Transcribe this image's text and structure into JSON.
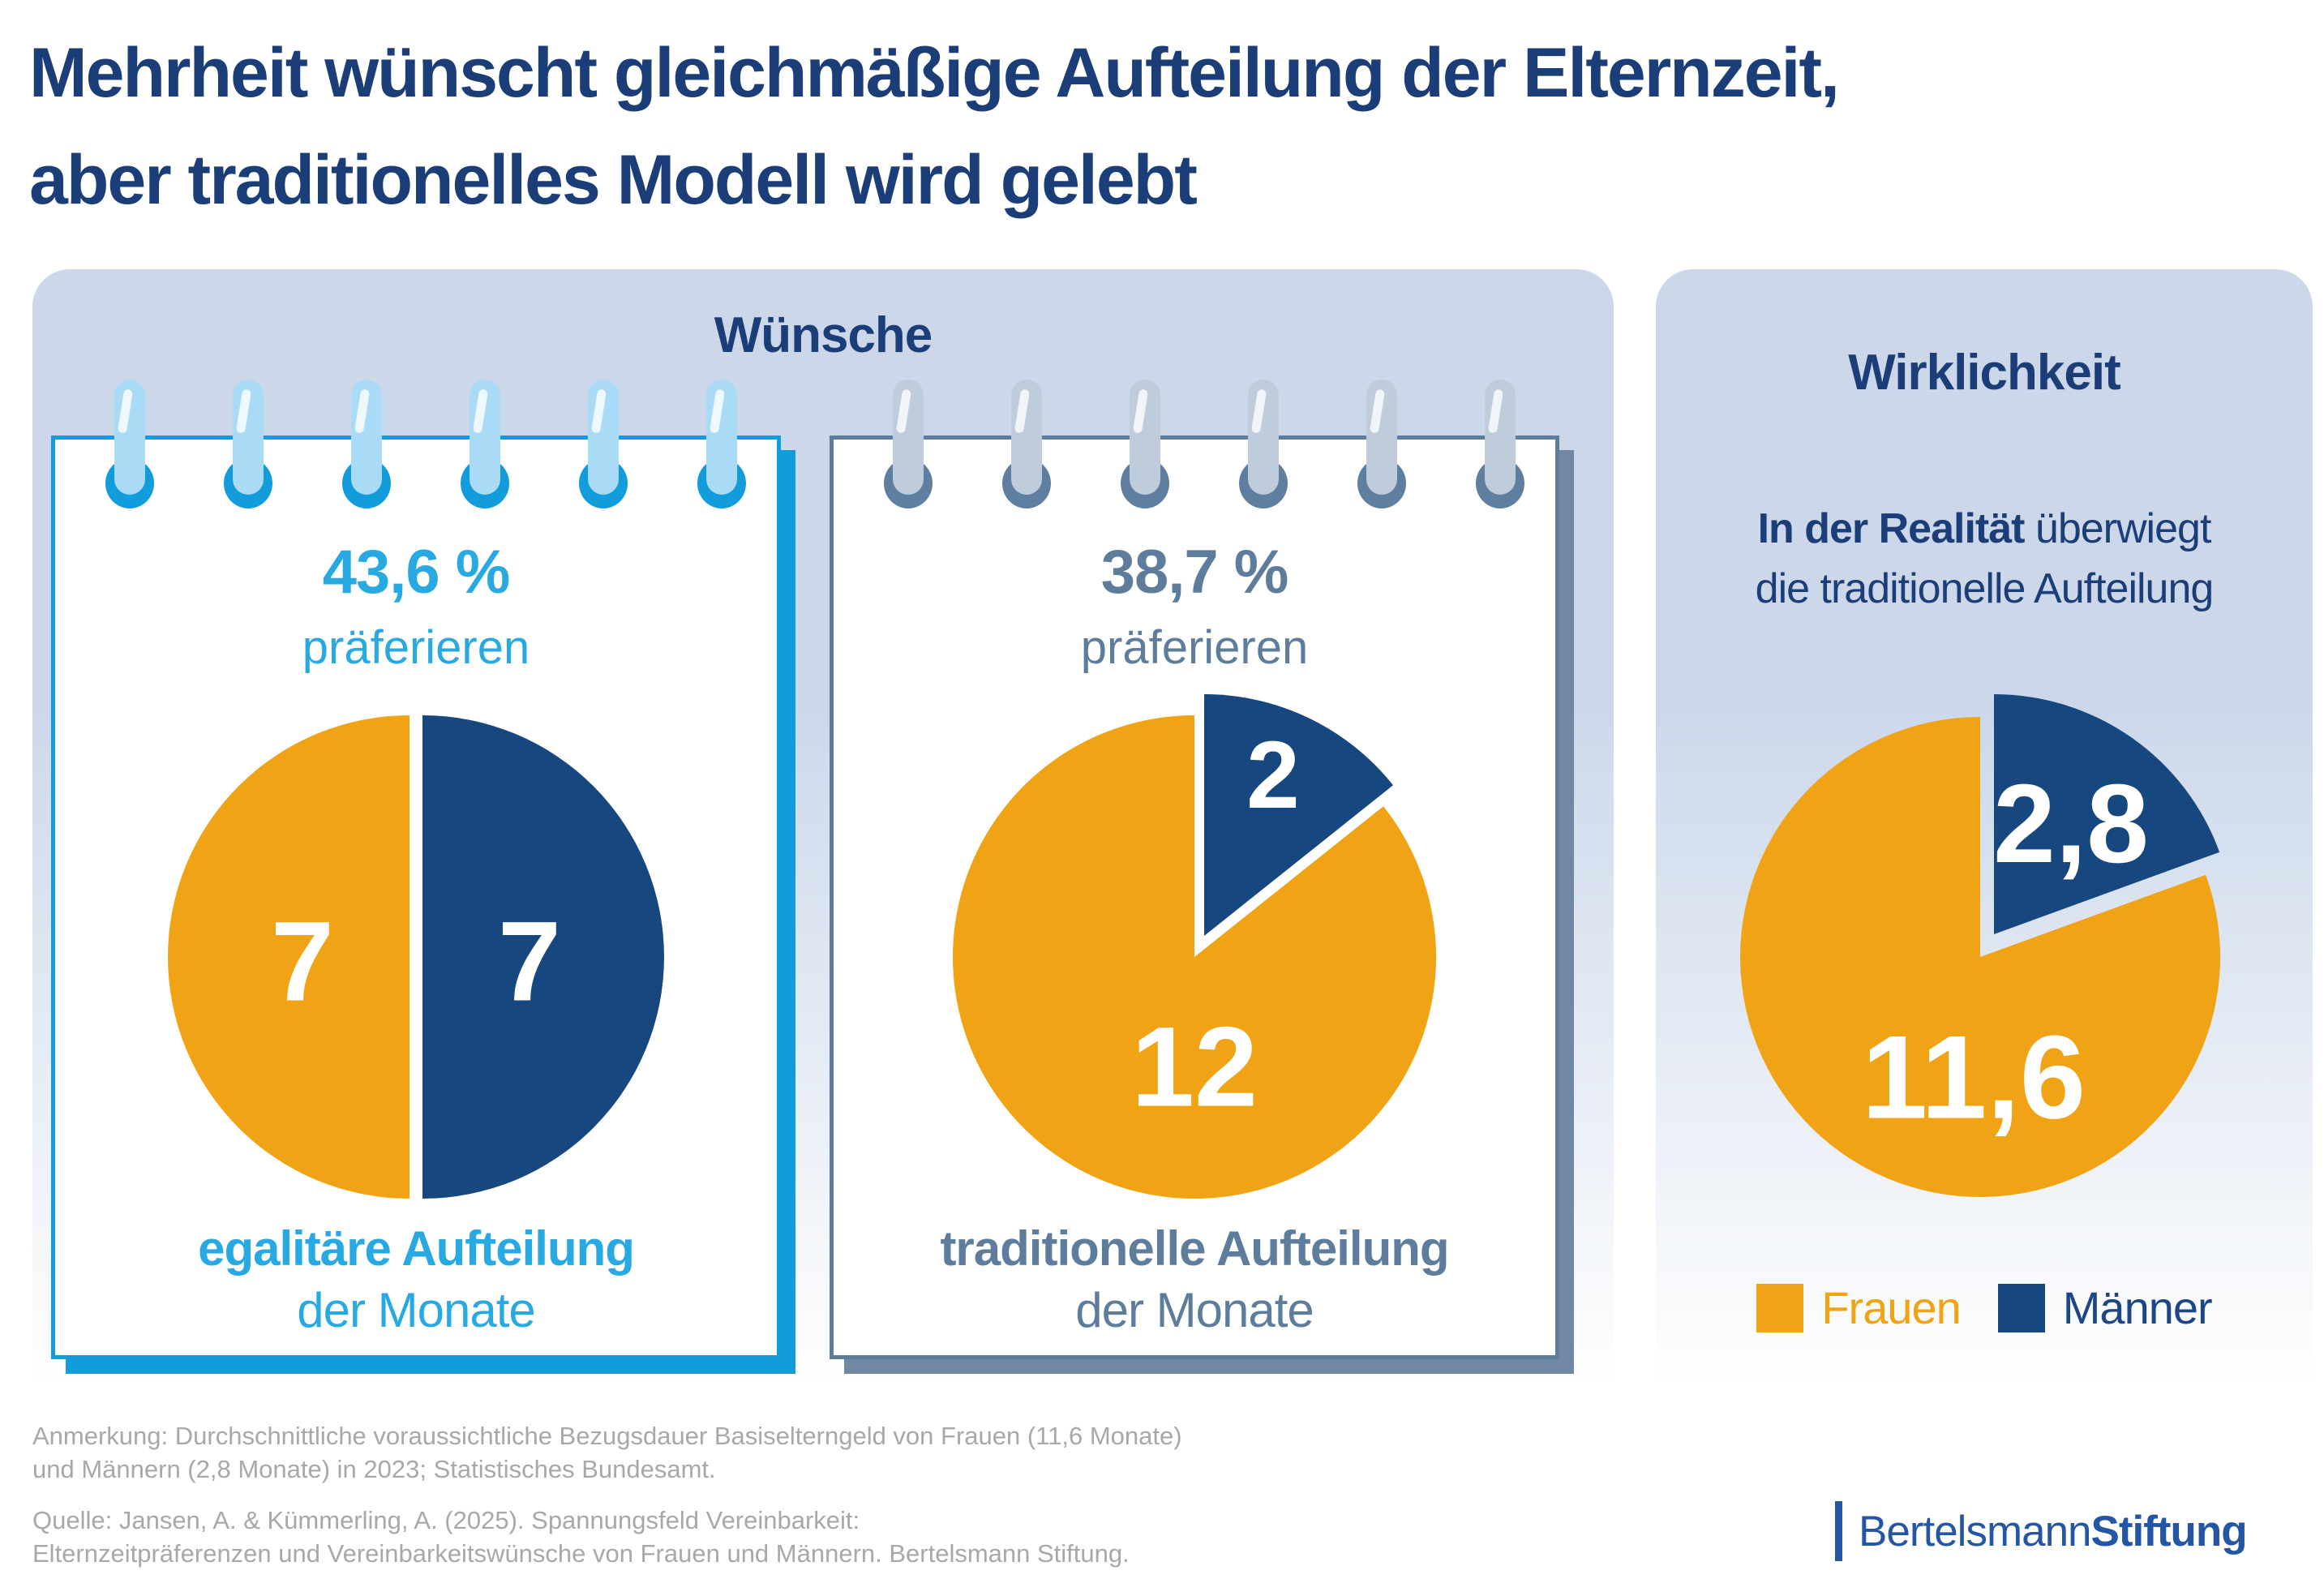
{
  "title": {
    "line1": "Mehrheit wünscht gleichmäßige Aufteilung der Elternzeit,",
    "line2": "aber traditionelles Modell wird gelebt"
  },
  "wuensche_panel": {
    "heading": "Wünsche",
    "cards": [
      {
        "percent": "43,6 %",
        "percent_sub": "präferieren",
        "caption_bold": "egalitäre Aufteilung",
        "caption_regular": "der Monate",
        "accent_color": "#29A9E2"
      },
      {
        "percent": "38,7 %",
        "percent_sub": "präferieren",
        "caption_bold": "traditionelle Aufteilung",
        "caption_regular": "der Monate",
        "accent_color": "#5E7D9D"
      }
    ]
  },
  "wirklichkeit_panel": {
    "heading": "Wirklichkeit",
    "intro_bold": "In der Realität",
    "intro_rest": " überwiegt",
    "intro_line2": "die traditionelle Aufteilung",
    "legend": [
      {
        "label": "Frauen",
        "color": "#F0A314",
        "text_color": "#F0A314"
      },
      {
        "label": "Männer",
        "color": "#17477F",
        "text_color": "#1C4784"
      }
    ]
  },
  "footnotes": {
    "anmerkung_line1": "Anmerkung: Durchschnittliche voraussichtliche Bezugsdauer Basiselterngeld von Frauen (11,6 Monate)",
    "anmerkung_line2": "und Männern (2,8 Monate) in 2023; Statistisches Bundesamt.",
    "quelle_line1": "Quelle: Jansen, A. & Kümmerling, A. (2025). Spannungsfeld Vereinbarkeit:",
    "quelle_line2": "Elternzeitpräferenzen und Vereinbarkeitswünsche von Frauen und Männern. Bertelsmann Stiftung."
  },
  "logo": {
    "name_regular": "Bertelsmann",
    "name_bold": "Stiftung"
  },
  "colors": {
    "title_navy": "#1B3E78",
    "pie_navy": "#17477F",
    "orange": "#F0A314",
    "bright_blue": "#139CDB",
    "light_blue_text": "#29A9E2",
    "slate": "#5E7D9D",
    "panel_bg": "#CCD8EA",
    "footnote_gray": "#A6A8AB",
    "logo_blue": "#2456A3"
  },
  "chart_data": [
    {
      "id": "pie-wish-egalitarian",
      "type": "pie",
      "title": "Wünsche: 43,6 % präferieren egalitäre Aufteilung der Monate",
      "unit": "Monate",
      "radius": 298,
      "slices": [
        {
          "name": "Männer",
          "value": 7,
          "color": "#17477F",
          "offset": [
            8,
            0
          ],
          "label": "7",
          "label_pos": [
            140,
            5
          ],
          "label_size": 140
        },
        {
          "name": "Frauen",
          "value": 7,
          "color": "#F0A314",
          "offset": [
            -8,
            0
          ],
          "label": "7",
          "label_pos": [
            -140,
            5
          ],
          "label_size": 140
        }
      ]
    },
    {
      "id": "pie-wish-traditional",
      "type": "pie",
      "title": "Wünsche: 38,7 % präferieren traditionelle Aufteilung der Monate",
      "unit": "Monate",
      "radius": 298,
      "slices": [
        {
          "name": "Männer",
          "value": 2,
          "color": "#17477F",
          "offset": [
            12,
            -26
          ],
          "label": "2",
          "label_pos": [
            97,
            -224
          ],
          "label_size": 118
        },
        {
          "name": "Frauen",
          "value": 12,
          "color": "#F0A314",
          "offset": [
            0,
            0
          ],
          "label": "12",
          "label_pos": [
            0,
            135
          ],
          "label_size": 140
        }
      ]
    },
    {
      "id": "pie-reality",
      "type": "pie",
      "title": "Wirklichkeit: durchschnittliche Bezugsdauer Basiselterngeld 2023",
      "unit": "Monate",
      "radius": 296,
      "slices": [
        {
          "name": "Männer",
          "value": 2.8,
          "color": "#17477F",
          "offset": [
            17,
            -28
          ],
          "label": "2,8",
          "label_pos": [
            112,
            -164
          ],
          "label_size": 138
        },
        {
          "name": "Frauen",
          "value": 11.6,
          "color": "#F0A314",
          "offset": [
            0,
            0
          ],
          "label": "11,6",
          "label_pos": [
            -8,
            148
          ],
          "label_size": 146
        }
      ]
    }
  ]
}
